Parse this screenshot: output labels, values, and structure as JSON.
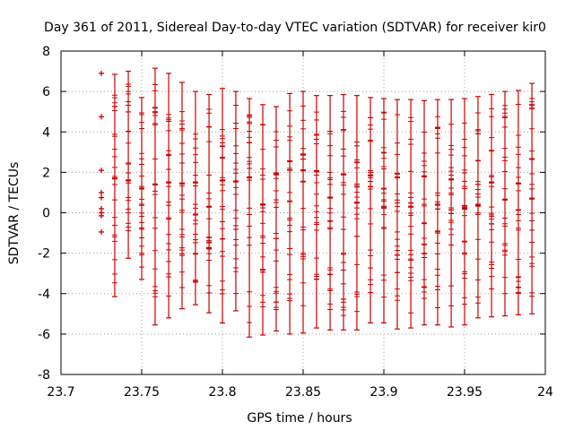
{
  "chart_data": {
    "type": "scatter",
    "title": "Day 361 of 2011, Sidereal Day-to-day VTEC variation (SDTVAR) for receiver kir0",
    "xlabel": "GPS time / hours",
    "ylabel": "SDTVAR / TECUs",
    "xlim": [
      23.7,
      24
    ],
    "ylim": [
      -8,
      8
    ],
    "xticks": [
      "23.7",
      "23.75",
      "23.8",
      "23.85",
      "23.9",
      "23.95",
      "24"
    ],
    "xtick_values": [
      23.7,
      23.75,
      23.8,
      23.85,
      23.9,
      23.95,
      24
    ],
    "yticks": [
      "8",
      "6",
      "4",
      "2",
      "0",
      "-2",
      "-4",
      "-6",
      "-8"
    ],
    "ytick_values": [
      8,
      6,
      4,
      2,
      0,
      -2,
      -4,
      -6,
      -8
    ],
    "grid": true,
    "series": [
      {
        "name": "SDTVAR points",
        "marker": "+",
        "color": "#cc0000",
        "x": [
          23.725,
          23.725,
          23.725,
          23.725,
          23.725,
          23.725,
          23.725,
          23.725,
          23.725
        ],
        "y": [
          6.9,
          4.75,
          2.1,
          1.0,
          0.75,
          0.2,
          0.0,
          -0.15,
          -0.95
        ]
      },
      {
        "name": "SDTVAR error bars",
        "color": "#cc0000",
        "style": "errorbar",
        "bars": [
          {
            "x": 23.7333,
            "low": -4.15,
            "high": 6.85,
            "center": 1.7
          },
          {
            "x": 23.7417,
            "low": -2.25,
            "high": 7.0,
            "center": 1.6
          },
          {
            "x": 23.75,
            "low": -3.3,
            "high": 5.7,
            "center": 1.2
          },
          {
            "x": 23.7583,
            "low": -5.55,
            "high": 7.15,
            "center": 1.4
          },
          {
            "x": 23.7667,
            "low": -5.2,
            "high": 6.9,
            "center": 1.5
          },
          {
            "x": 23.775,
            "low": -4.75,
            "high": 6.45,
            "center": 1.45
          },
          {
            "x": 23.7833,
            "low": -4.55,
            "high": 6.0,
            "center": 1.5
          },
          {
            "x": 23.7917,
            "low": -4.95,
            "high": 5.85,
            "center": 0.3
          },
          {
            "x": 23.8,
            "low": -5.45,
            "high": 6.15,
            "center": 1.6
          },
          {
            "x": 23.8083,
            "low": -4.85,
            "high": 6.0,
            "center": 1.55
          },
          {
            "x": 23.8167,
            "low": -6.15,
            "high": 5.65,
            "center": 1.75
          },
          {
            "x": 23.825,
            "low": -6.05,
            "high": 5.35,
            "center": 0.4
          },
          {
            "x": 23.8333,
            "low": -5.85,
            "high": 5.25,
            "center": 1.9
          },
          {
            "x": 23.8417,
            "low": -6.0,
            "high": 5.9,
            "center": 2.55
          },
          {
            "x": 23.85,
            "low": -5.95,
            "high": 6.0,
            "center": 2.1
          },
          {
            "x": 23.8583,
            "low": -5.7,
            "high": 5.8,
            "center": 2.05
          },
          {
            "x": 23.8667,
            "low": -5.8,
            "high": 5.8,
            "center": 0.75
          },
          {
            "x": 23.875,
            "low": -5.8,
            "high": 5.85,
            "center": 1.9
          },
          {
            "x": 23.8833,
            "low": -5.8,
            "high": 5.8,
            "center": 0.5
          },
          {
            "x": 23.8917,
            "low": -5.45,
            "high": 5.7,
            "center": 1.85
          },
          {
            "x": 23.9,
            "low": -5.45,
            "high": 5.65,
            "center": 0.25
          },
          {
            "x": 23.9083,
            "low": -5.75,
            "high": 5.6,
            "center": 1.75
          },
          {
            "x": 23.9167,
            "low": -5.7,
            "high": 5.6,
            "center": 0.3
          },
          {
            "x": 23.925,
            "low": -5.55,
            "high": 5.55,
            "center": 1.8
          },
          {
            "x": 23.9333,
            "low": -5.55,
            "high": 5.6,
            "center": 0.4
          },
          {
            "x": 23.9417,
            "low": -5.65,
            "high": 5.6,
            "center": 1.65
          },
          {
            "x": 23.95,
            "low": -5.55,
            "high": 5.65,
            "center": 0.2
          },
          {
            "x": 23.9583,
            "low": -5.2,
            "high": 5.75,
            "center": 0.35
          },
          {
            "x": 23.9667,
            "low": -5.15,
            "high": 5.85,
            "center": 1.5
          },
          {
            "x": 23.975,
            "low": -5.1,
            "high": 6.0,
            "center": 0.65
          },
          {
            "x": 23.9833,
            "low": -5.05,
            "high": 6.05,
            "center": 1.45
          },
          {
            "x": 23.9917,
            "low": -5.0,
            "high": 6.4,
            "center": 0.7
          }
        ]
      }
    ]
  }
}
